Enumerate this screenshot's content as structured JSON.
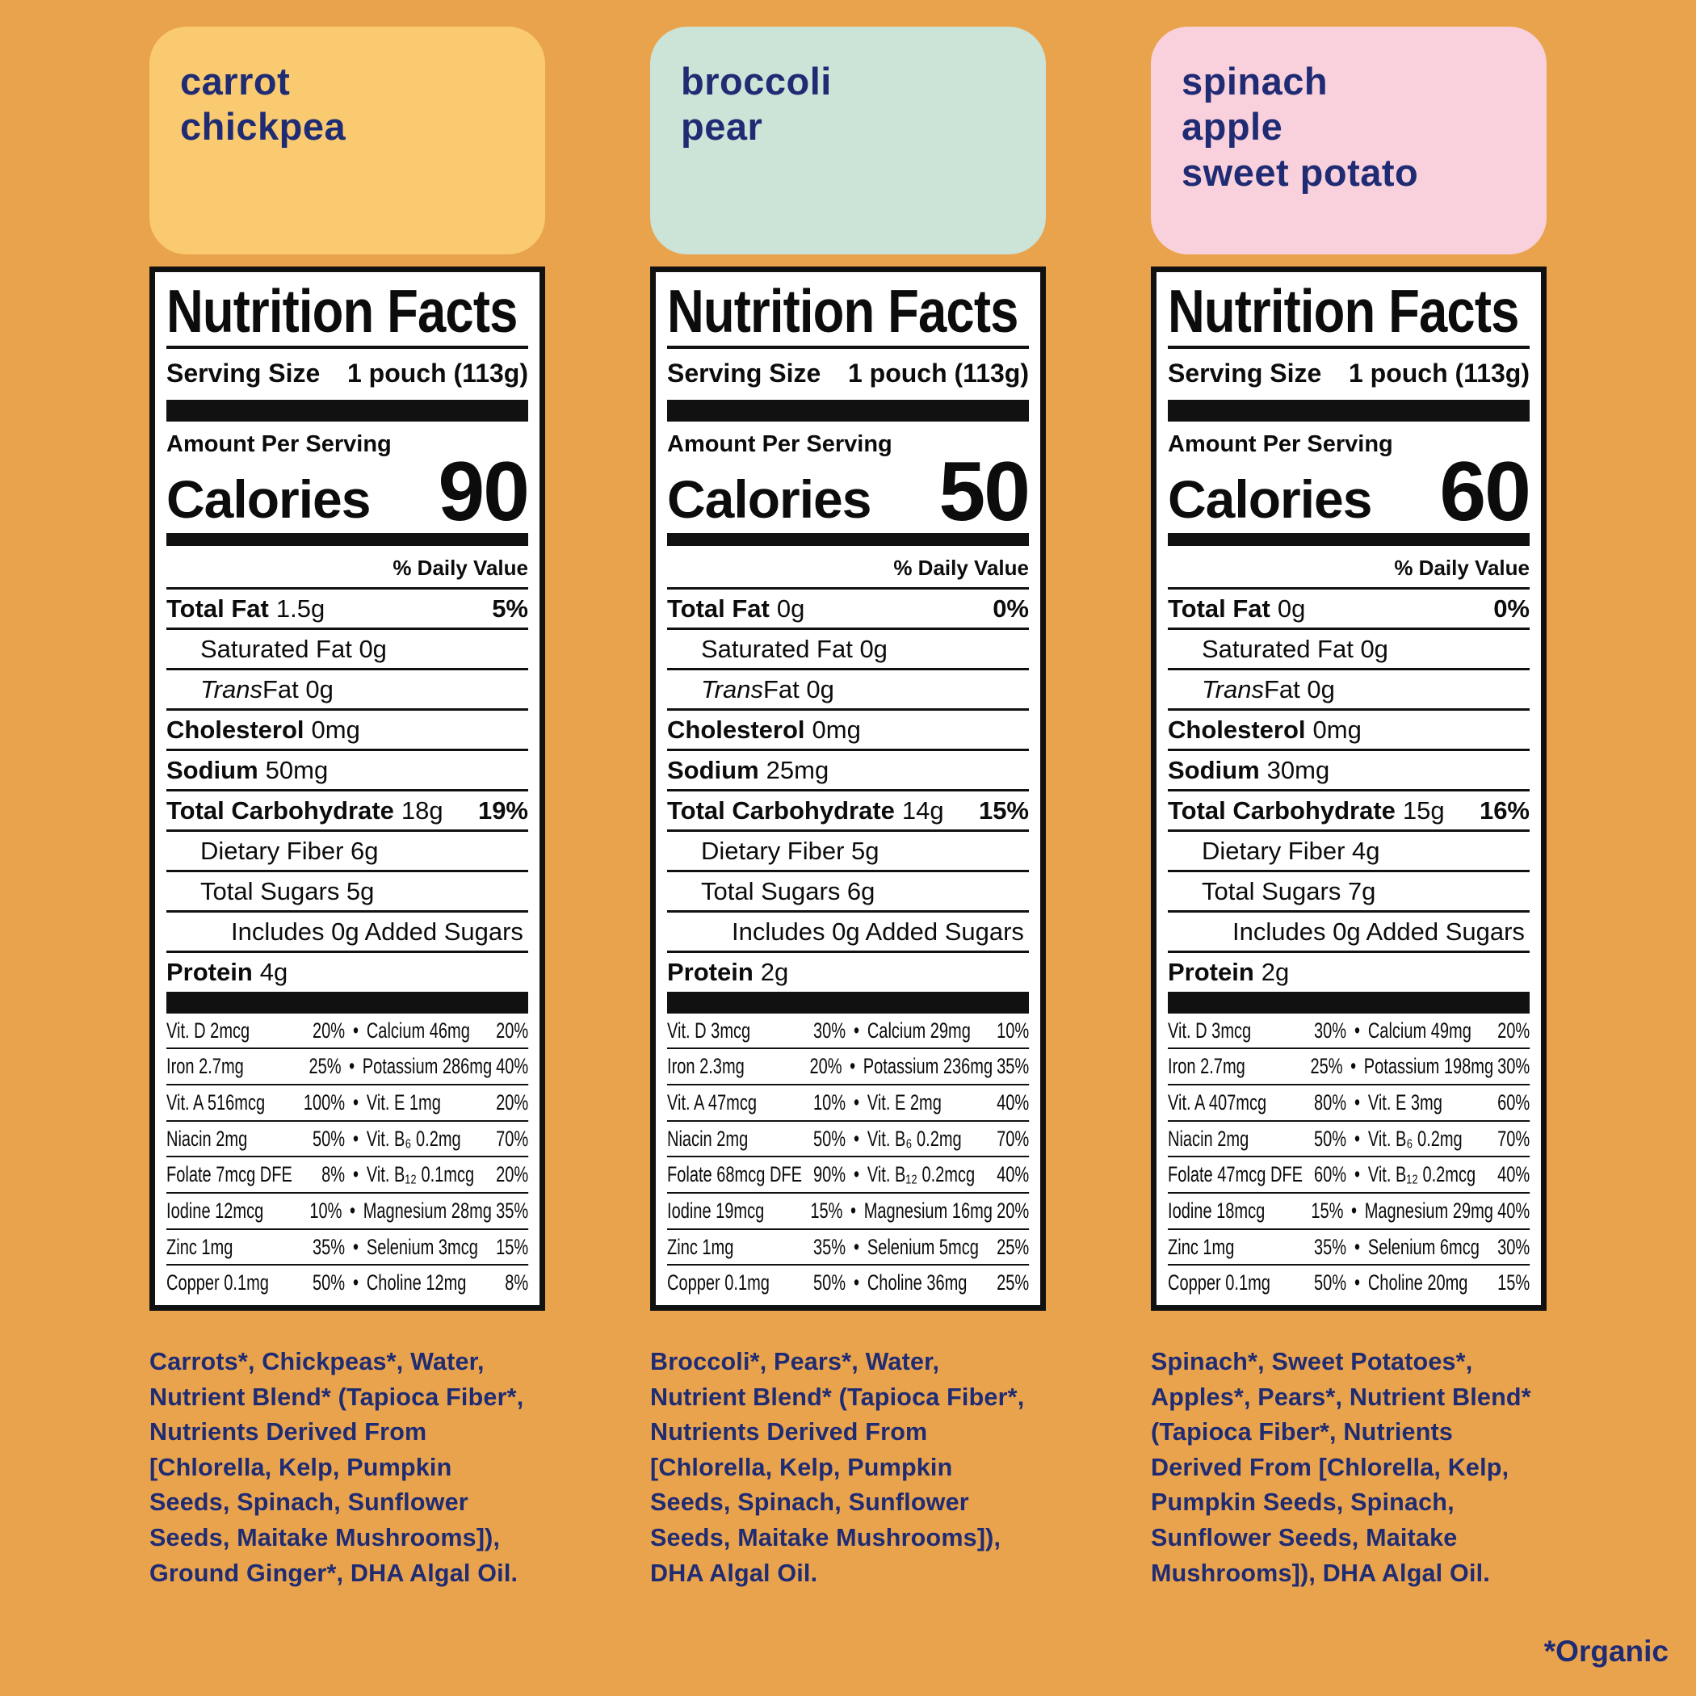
{
  "colors": {
    "background": "#E9A34C",
    "badge_carrot_chickpea": "#F9CA70",
    "badge_broccoli_pear": "#CCE3D7",
    "badge_spinach_apple_sweet_potato": "#F9D1DD",
    "text_navy": "#1F2B73",
    "label_ink": "#111111",
    "label_background": "#FFFFFF"
  },
  "page": {
    "footnote": "*Organic"
  },
  "labels": [
    {
      "product_name": "carrot\nchickpea",
      "title": "Nutrition Facts",
      "serving_size_label": "Serving Size",
      "serving_size_value": "1 pouch (113g)",
      "amount_per_serving": "Amount Per Serving",
      "calories_label": "Calories",
      "calories_value": "90",
      "daily_value_header": "% Daily Value",
      "bullet": "•",
      "nutrients": {
        "total_fat": {
          "name": "Total Fat",
          "value": "1.5g",
          "dv": "5%"
        },
        "saturated_fat": {
          "text": "Saturated Fat 0g"
        },
        "trans_fat": {
          "italic": "Trans",
          "text": " Fat 0g"
        },
        "cholesterol": {
          "name": "Cholesterol",
          "value": "0mg"
        },
        "sodium": {
          "name": "Sodium",
          "value": "50mg"
        },
        "total_carb": {
          "name": "Total Carbohydrate",
          "value": "18g",
          "dv": "19%"
        },
        "fiber": {
          "text": "Dietary Fiber 6g"
        },
        "sugars": {
          "text": "Total Sugars 5g"
        },
        "added_sugars": {
          "text": "Includes 0g Added Sugars"
        },
        "protein": {
          "name": "Protein",
          "value": "4g"
        }
      },
      "micros": [
        {
          "l": "Vit. D 2mcg",
          "lp": "20%",
          "r": "Calcium 46mg",
          "rp": "20%"
        },
        {
          "l": "Iron 2.7mg",
          "lp": "25%",
          "r": "Potassium 286mg",
          "rp": "40%"
        },
        {
          "l": "Vit. A 516mcg",
          "lp": "100%",
          "r": "Vit. E 1mg",
          "rp": "20%"
        },
        {
          "l": "Niacin 2mg",
          "lp": "50%",
          "r": "Vit. B₆ 0.2mg",
          "rp": "70%"
        },
        {
          "l": "Folate 7mcg DFE",
          "lp": "8%",
          "r": "Vit. B₁₂ 0.1mcg",
          "rp": "20%"
        },
        {
          "l": "Iodine 12mcg",
          "lp": "10%",
          "r": "Magnesium 28mg",
          "rp": "35%"
        },
        {
          "l": "Zinc 1mg",
          "lp": "35%",
          "r": "Selenium 3mcg",
          "rp": "15%"
        },
        {
          "l": "Copper 0.1mg",
          "lp": "50%",
          "r": "Choline 12mg",
          "rp": "8%"
        }
      ],
      "ingredients": "Carrots*, Chickpeas*, Water, Nutrient Blend* (Tapioca Fiber*, Nutrients Derived From [Chlorella, Kelp, Pumpkin Seeds, Spinach, Sunflower Seeds, Maitake Mushrooms]), Ground Ginger*, DHA Algal Oil."
    },
    {
      "product_name": "broccoli\npear",
      "title": "Nutrition Facts",
      "serving_size_label": "Serving Size",
      "serving_size_value": "1 pouch (113g)",
      "amount_per_serving": "Amount Per Serving",
      "calories_label": "Calories",
      "calories_value": "50",
      "daily_value_header": "% Daily Value",
      "bullet": "•",
      "nutrients": {
        "total_fat": {
          "name": "Total Fat",
          "value": "0g",
          "dv": "0%"
        },
        "saturated_fat": {
          "text": "Saturated Fat 0g"
        },
        "trans_fat": {
          "italic": "Trans",
          "text": " Fat 0g"
        },
        "cholesterol": {
          "name": "Cholesterol",
          "value": "0mg"
        },
        "sodium": {
          "name": "Sodium",
          "value": "25mg"
        },
        "total_carb": {
          "name": "Total Carbohydrate",
          "value": "14g",
          "dv": "15%"
        },
        "fiber": {
          "text": "Dietary Fiber 5g"
        },
        "sugars": {
          "text": "Total Sugars 6g"
        },
        "added_sugars": {
          "text": "Includes 0g Added Sugars"
        },
        "protein": {
          "name": "Protein",
          "value": "2g"
        }
      },
      "micros": [
        {
          "l": "Vit. D 3mcg",
          "lp": "30%",
          "r": "Calcium 29mg",
          "rp": "10%"
        },
        {
          "l": "Iron 2.3mg",
          "lp": "20%",
          "r": "Potassium 236mg",
          "rp": "35%"
        },
        {
          "l": "Vit. A 47mcg",
          "lp": "10%",
          "r": "Vit. E 2mg",
          "rp": "40%"
        },
        {
          "l": "Niacin 2mg",
          "lp": "50%",
          "r": "Vit. B₆ 0.2mg",
          "rp": "70%"
        },
        {
          "l": "Folate 68mcg DFE",
          "lp": "90%",
          "r": "Vit. B₁₂ 0.2mcg",
          "rp": "40%"
        },
        {
          "l": "Iodine 19mcg",
          "lp": "15%",
          "r": "Magnesium 16mg",
          "rp": "20%"
        },
        {
          "l": "Zinc 1mg",
          "lp": "35%",
          "r": "Selenium 5mcg",
          "rp": "25%"
        },
        {
          "l": "Copper 0.1mg",
          "lp": "50%",
          "r": "Choline 36mg",
          "rp": "25%"
        }
      ],
      "ingredients": "Broccoli*, Pears*, Water,  Nutrient Blend* (Tapioca Fiber*, Nutrients Derived From [Chlorella, Kelp, Pumpkin Seeds, Spinach, Sunflower Seeds, Maitake Mushrooms]), DHA Algal Oil."
    },
    {
      "product_name": "spinach\napple\nsweet potato",
      "title": "Nutrition Facts",
      "serving_size_label": "Serving Size",
      "serving_size_value": "1 pouch (113g)",
      "amount_per_serving": "Amount Per Serving",
      "calories_label": "Calories",
      "calories_value": "60",
      "daily_value_header": "% Daily Value",
      "bullet": "•",
      "nutrients": {
        "total_fat": {
          "name": "Total Fat",
          "value": "0g",
          "dv": "0%"
        },
        "saturated_fat": {
          "text": "Saturated Fat 0g"
        },
        "trans_fat": {
          "italic": "Trans",
          "text": " Fat 0g"
        },
        "cholesterol": {
          "name": "Cholesterol",
          "value": "0mg"
        },
        "sodium": {
          "name": "Sodium",
          "value": "30mg"
        },
        "total_carb": {
          "name": "Total Carbohydrate",
          "value": "15g",
          "dv": "16%"
        },
        "fiber": {
          "text": "Dietary Fiber 4g"
        },
        "sugars": {
          "text": "Total Sugars 7g"
        },
        "added_sugars": {
          "text": "Includes 0g Added Sugars"
        },
        "protein": {
          "name": "Protein",
          "value": "2g"
        }
      },
      "micros": [
        {
          "l": "Vit. D 3mcg",
          "lp": "30%",
          "r": "Calcium 49mg",
          "rp": "20%"
        },
        {
          "l": "Iron 2.7mg",
          "lp": "25%",
          "r": "Potassium 198mg",
          "rp": "30%"
        },
        {
          "l": "Vit. A 407mcg",
          "lp": "80%",
          "r": "Vit. E 3mg",
          "rp": "60%"
        },
        {
          "l": "Niacin 2mg",
          "lp": "50%",
          "r": "Vit. B₆ 0.2mg",
          "rp": "70%"
        },
        {
          "l": "Folate 47mcg DFE",
          "lp": "60%",
          "r": "Vit. B₁₂ 0.2mcg",
          "rp": "40%"
        },
        {
          "l": "Iodine 18mcg",
          "lp": "15%",
          "r": "Magnesium 29mg",
          "rp": "40%"
        },
        {
          "l": "Zinc 1mg",
          "lp": "35%",
          "r": "Selenium 6mcg",
          "rp": "30%"
        },
        {
          "l": "Copper 0.1mg",
          "lp": "50%",
          "r": "Choline 20mg",
          "rp": "15%"
        }
      ],
      "ingredients": "Spinach*, Sweet Potatoes*, Apples*,  Pears*, Nutrient Blend* (Tapioca Fiber*, Nutrients Derived From [Chlorella, Kelp, Pumpkin Seeds, Spinach, Sunflower Seeds, Maitake Mushrooms]), DHA Algal Oil."
    }
  ]
}
